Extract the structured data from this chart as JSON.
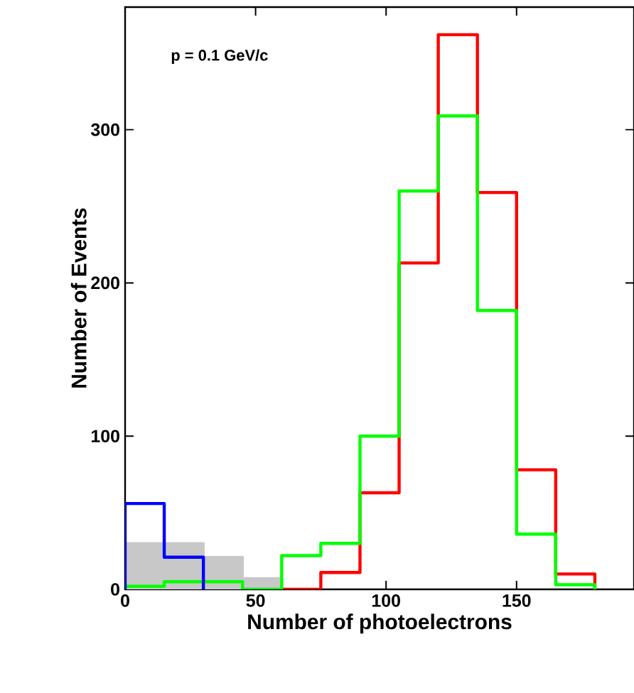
{
  "chart_data": {
    "type": "histogram",
    "xlabel": "Number of photoelectrons",
    "ylabel": "Number of Events",
    "annotations": [
      "p = 0.1 GeV/c"
    ],
    "bins": [
      0,
      15,
      30,
      45,
      60,
      75,
      90,
      105,
      120,
      135,
      150,
      165,
      180
    ],
    "series": [
      {
        "type": "histogram",
        "color": "#c8c8c8",
        "bins": [
          0,
          15,
          30,
          45,
          60
        ],
        "values": [
          30,
          30,
          21,
          7
        ]
      },
      {
        "color": "#ff0000",
        "bins": [
          60,
          75,
          90,
          105,
          120,
          135,
          150,
          165,
          180
        ],
        "values": [
          0,
          11,
          63,
          213,
          362,
          259,
          78,
          10
        ]
      },
      {
        "color": "#00ff00",
        "values": [
          2,
          5,
          5,
          0,
          22,
          30,
          100,
          260,
          309,
          182,
          36,
          3
        ]
      },
      {
        "color": "#0000ff",
        "bins": [
          0,
          15,
          30
        ],
        "values": [
          56,
          21
        ]
      }
    ],
    "xlim": [
      0,
      195
    ],
    "ylim": [
      0,
      380
    ],
    "xticks": [
      0,
      50,
      100,
      150
    ],
    "yticks": [
      0,
      100,
      200,
      300
    ],
    "grid": false
  }
}
